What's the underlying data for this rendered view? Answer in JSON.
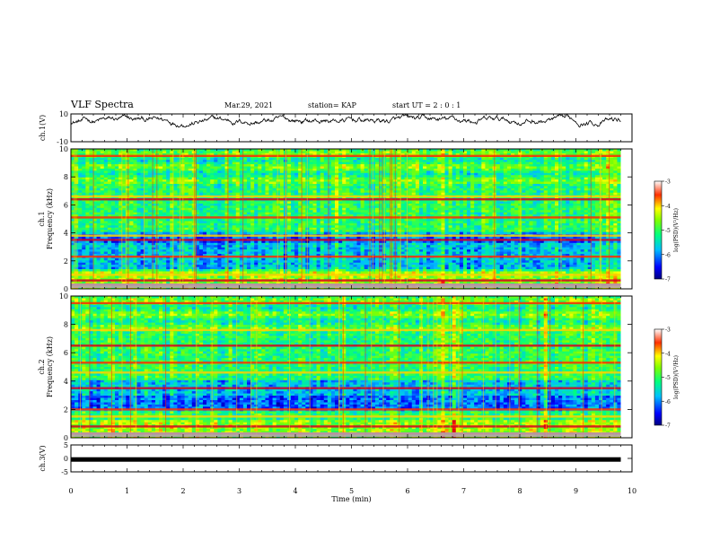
{
  "header": {
    "title": "VLF Spectra",
    "date": "Mar.29, 2021",
    "station": "station= KAP",
    "start": "start  UT =  2 : 0 : 1"
  },
  "chart_data": [
    {
      "type": "line",
      "name": "ch1-waveform",
      "ylabel": "ch.1(V)",
      "ylim": [
        -10,
        10
      ],
      "yticks": [
        "10",
        "-10"
      ],
      "xlim": [
        0,
        10
      ],
      "note": "continuous noisy waveform, roughly between 0 and 10 V, 0 to ~9.8 min"
    },
    {
      "type": "heatmap",
      "name": "ch1-spectrogram",
      "ylabel": "ch.1\nFrequency (kHz)",
      "ylabel_line1": "ch.1",
      "ylabel_line2": "Frequency (kHz)",
      "ylim": [
        0,
        10
      ],
      "yticks": [
        "0",
        "2",
        "4",
        "6",
        "8",
        "10"
      ],
      "xlim": [
        0,
        10
      ],
      "data_end_min": 9.8,
      "bands_khz": [
        0.3,
        0.6,
        1.0,
        2.3,
        3.5,
        3.8,
        5.1,
        6.4,
        6.6,
        9.5
      ],
      "colorbar": {
        "min": -7,
        "max": -3,
        "ticks": [
          "-3",
          "-4",
          "-5",
          "-6",
          "-7"
        ],
        "label": "log(PSD)(V²/Hz)"
      }
    },
    {
      "type": "heatmap",
      "name": "ch2-spectrogram",
      "ylabel": "ch.2\nFrequency (kHz)",
      "ylabel_line1": "ch.2",
      "ylabel_line2": "Frequency (kHz)",
      "ylim": [
        0,
        10
      ],
      "yticks": [
        "0",
        "2",
        "4",
        "6",
        "8",
        "10"
      ],
      "xlim": [
        0,
        10
      ],
      "data_end_min": 9.8,
      "bands_khz": [
        0.3,
        0.8,
        1.5,
        2.0,
        3.5,
        4.6,
        5.3,
        6.5,
        7.6,
        9.5
      ],
      "colorbar": {
        "min": -7,
        "max": -3,
        "ticks": [
          "-3",
          "-4",
          "-5",
          "-6",
          "-7"
        ],
        "label": "log(PSD)(V²/Hz)"
      }
    },
    {
      "type": "line",
      "name": "ch3-waveform",
      "ylabel": "ch.3(V)",
      "ylim": [
        -5,
        5
      ],
      "yticks": [
        "5",
        "0",
        "-5"
      ],
      "xlim": [
        0,
        10
      ],
      "level": -0.4,
      "note": "thick near-constant trace just below 0 V"
    }
  ],
  "xaxis": {
    "label": "Time (min)",
    "ticks": [
      "0",
      "1",
      "2",
      "3",
      "4",
      "5",
      "6",
      "7",
      "8",
      "9",
      "10"
    ]
  },
  "colors": {
    "black": "#000000",
    "background": "#ffffff"
  }
}
